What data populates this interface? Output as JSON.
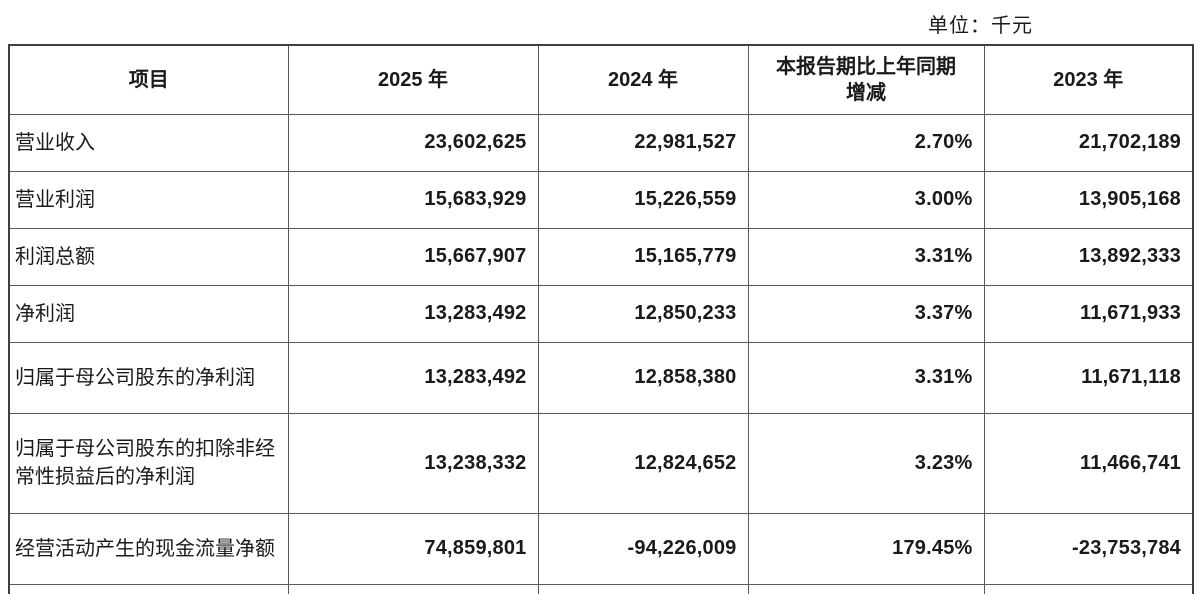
{
  "unit_label": "单位：千元",
  "table": {
    "columns": {
      "item": "项目",
      "y2025": "2025 年",
      "y2024": "2024 年",
      "change": "本报告期比上年同期增减",
      "y2023": "2023 年"
    },
    "rows": [
      {
        "item": "营业收入",
        "y2025": "23,602,625",
        "y2024": "22,981,527",
        "change": "2.70%",
        "y2023": "21,702,189"
      },
      {
        "item": "营业利润",
        "y2025": "15,683,929",
        "y2024": "15,226,559",
        "change": "3.00%",
        "y2023": "13,905,168"
      },
      {
        "item": "利润总额",
        "y2025": "15,667,907",
        "y2024": "15,165,779",
        "change": "3.31%",
        "y2023": "13,892,333"
      },
      {
        "item": "净利润",
        "y2025": "13,283,492",
        "y2024": "12,850,233",
        "change": "3.37%",
        "y2023": "11,671,933"
      },
      {
        "item": "归属于母公司股东的净利润",
        "y2025": "13,283,492",
        "y2024": "12,858,380",
        "change": "3.31%",
        "y2023": "11,671,118"
      },
      {
        "item": "归属于母公司股东的扣除非经常性损益后的净利润",
        "y2025": "13,238,332",
        "y2024": "12,824,652",
        "change": "3.23%",
        "y2023": "11,466,741"
      },
      {
        "item": "经营活动产生的现金流量净额",
        "y2025": "74,859,801",
        "y2024": "-94,226,009",
        "change": "179.45%",
        "y2023": "-23,753,784"
      }
    ]
  }
}
